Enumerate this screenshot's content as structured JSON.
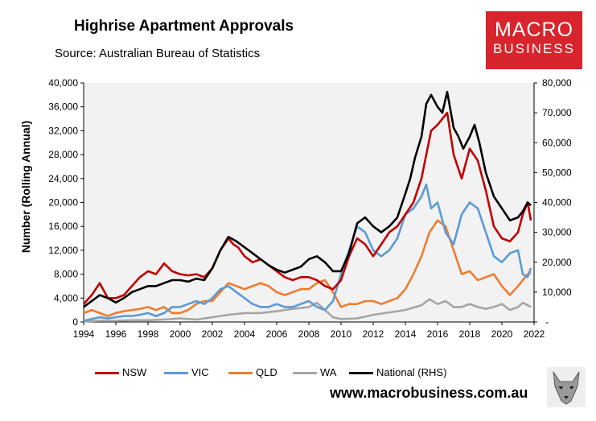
{
  "header": {
    "title": "Highrise Apartment Approvals",
    "source": "Source: Australian Bureau of Statistics"
  },
  "logo": {
    "line1": "MACRO",
    "line2": "BUSINESS"
  },
  "footer": {
    "url": "www.macrobusiness.com.au"
  },
  "colors": {
    "NSW": "#c00000",
    "VIC": "#5b9bd5",
    "QLD": "#ed7d31",
    "WA": "#a5a5a5",
    "National": "#000000",
    "plot_bg": "#f2f2f2"
  },
  "chart_data": {
    "type": "line",
    "title": "Highrise Apartment Approvals",
    "ylabel": "Number (Rolling Annual)",
    "ylabel_right": "",
    "ylim": [
      0,
      40000
    ],
    "ylim_right": [
      0,
      80000
    ],
    "xlim": [
      1994,
      2022
    ],
    "x_ticks": [
      "1994",
      "1996",
      "1998",
      "2000",
      "2002",
      "2004",
      "2006",
      "2008",
      "2010",
      "2012",
      "2014",
      "2016",
      "2018",
      "2020",
      "2022"
    ],
    "y_ticks": [
      "0",
      "4,000",
      "8,000",
      "12,000",
      "16,000",
      "20,000",
      "24,000",
      "28,000",
      "32,000",
      "36,000",
      "40,000"
    ],
    "y_ticks_right": [
      "-",
      "10,000",
      "20,000",
      "30,000",
      "40,000",
      "50,000",
      "60,000",
      "70,000",
      "80,000"
    ],
    "legend": [
      "NSW",
      "VIC",
      "QLD",
      "WA",
      "National (RHS)"
    ],
    "series": [
      {
        "name": "NSW",
        "axis": "left",
        "x": [
          1994,
          1994.5,
          1995,
          1995.5,
          1996,
          1996.5,
          1997,
          1997.5,
          1998,
          1998.5,
          1999,
          1999.5,
          2000,
          2000.5,
          2001,
          2001.5,
          2002,
          2002.5,
          2003,
          2003.3,
          2003.6,
          2004,
          2004.5,
          2005,
          2005.5,
          2006,
          2006.5,
          2007,
          2007.5,
          2008,
          2008.5,
          2009,
          2009.5,
          2010,
          2010.5,
          2011,
          2011.5,
          2012,
          2012.5,
          2013,
          2013.5,
          2014,
          2014.5,
          2015,
          2015.3,
          2015.6,
          2016,
          2016.3,
          2016.6,
          2017,
          2017.5,
          2018,
          2018.5,
          2019,
          2019.5,
          2020,
          2020.5,
          2021,
          2021.3,
          2021.6,
          2021.8
        ],
        "values": [
          3000,
          4500,
          6500,
          4000,
          4000,
          4500,
          6000,
          7500,
          8500,
          8000,
          9800,
          8500,
          8000,
          7800,
          8000,
          7500,
          9000,
          12000,
          14000,
          13000,
          12500,
          11000,
          10000,
          10500,
          9500,
          8500,
          7500,
          7000,
          7500,
          7500,
          7000,
          6000,
          5500,
          7000,
          11000,
          14000,
          13000,
          11000,
          13000,
          15000,
          16000,
          18000,
          20000,
          24000,
          28000,
          32000,
          33000,
          34000,
          35000,
          28000,
          24000,
          29000,
          27000,
          22000,
          16000,
          14000,
          13500,
          15000,
          18000,
          20000,
          17000
        ]
      },
      {
        "name": "VIC",
        "axis": "left",
        "x": [
          1994,
          1994.5,
          1995,
          1995.5,
          1996,
          1996.5,
          1997,
          1997.5,
          1998,
          1998.5,
          1999,
          1999.5,
          2000,
          2000.5,
          2001,
          2001.5,
          2002,
          2002.5,
          2003,
          2003.5,
          2004,
          2004.5,
          2005,
          2005.5,
          2006,
          2006.5,
          2007,
          2007.5,
          2008,
          2008.5,
          2009,
          2009.5,
          2010,
          2010.5,
          2011,
          2011.5,
          2012,
          2012.5,
          2013,
          2013.5,
          2014,
          2014.5,
          2015,
          2015.3,
          2015.6,
          2016,
          2016.5,
          2017,
          2017.5,
          2018,
          2018.5,
          2019,
          2019.5,
          2020,
          2020.5,
          2021,
          2021.3,
          2021.6,
          2021.8
        ],
        "values": [
          200,
          500,
          800,
          600,
          800,
          1000,
          1000,
          1200,
          1500,
          1000,
          1500,
          2500,
          2500,
          3000,
          3500,
          3000,
          4000,
          5500,
          6000,
          5000,
          4000,
          3000,
          2500,
          2500,
          3000,
          2500,
          2500,
          3000,
          3500,
          2500,
          2000,
          3500,
          8000,
          12000,
          16000,
          15000,
          12000,
          11000,
          12000,
          14000,
          18000,
          19000,
          21000,
          23000,
          19000,
          20000,
          15000,
          13000,
          18000,
          20000,
          19000,
          15000,
          11000,
          10000,
          11500,
          12000,
          8000,
          7500,
          9000
        ]
      },
      {
        "name": "QLD",
        "axis": "left",
        "x": [
          1994,
          1994.5,
          1995,
          1995.5,
          1996,
          1996.5,
          1997,
          1997.5,
          1998,
          1998.5,
          1999,
          1999.5,
          2000,
          2000.5,
          2001,
          2001.5,
          2002,
          2002.5,
          2003,
          2003.5,
          2004,
          2004.5,
          2005,
          2005.5,
          2006,
          2006.5,
          2007,
          2007.5,
          2008,
          2008.5,
          2009,
          2009.5,
          2010,
          2010.5,
          2011,
          2011.5,
          2012,
          2012.5,
          2013,
          2013.5,
          2014,
          2014.5,
          2015,
          2015.5,
          2016,
          2016.5,
          2017,
          2017.5,
          2018,
          2018.5,
          2019,
          2019.5,
          2020,
          2020.5,
          2021,
          2021.3,
          2021.6,
          2021.8
        ],
        "values": [
          1500,
          2000,
          1500,
          1000,
          1500,
          1800,
          2000,
          2200,
          2500,
          2000,
          2500,
          1500,
          1500,
          2000,
          3000,
          3500,
          3500,
          5000,
          6500,
          6000,
          5500,
          6000,
          6500,
          6000,
          5000,
          4500,
          5000,
          5500,
          5500,
          6500,
          7000,
          5000,
          2500,
          3000,
          3000,
          3500,
          3500,
          3000,
          3500,
          4000,
          5500,
          8000,
          11000,
          15000,
          17000,
          16000,
          12000,
          8000,
          8500,
          7000,
          7500,
          8000,
          6000,
          4500,
          6000,
          7000,
          8000,
          8200
        ]
      },
      {
        "name": "WA",
        "axis": "left",
        "x": [
          1994,
          1995,
          1996,
          1997,
          1998,
          1999,
          2000,
          2001,
          2002,
          2003,
          2004,
          2005,
          2006,
          2007,
          2008,
          2008.5,
          2009,
          2009.5,
          2010,
          2011,
          2012,
          2013,
          2014,
          2015,
          2015.5,
          2016,
          2016.5,
          2017,
          2017.5,
          2018,
          2018.5,
          2019,
          2019.5,
          2020,
          2020.5,
          2021,
          2021.3,
          2021.6,
          2021.8
        ],
        "values": [
          100,
          200,
          200,
          300,
          300,
          400,
          600,
          400,
          800,
          1200,
          1500,
          1500,
          1800,
          2200,
          2500,
          3200,
          2000,
          800,
          500,
          600,
          1200,
          1600,
          2000,
          2800,
          3800,
          3000,
          3500,
          2500,
          2500,
          3000,
          2500,
          2200,
          2500,
          3000,
          2000,
          2500,
          3200,
          2800,
          2500
        ]
      },
      {
        "name": "National (RHS)",
        "axis": "right",
        "x": [
          1994,
          1994.5,
          1995,
          1995.5,
          1996,
          1996.5,
          1997,
          1997.5,
          1998,
          1998.5,
          1999,
          1999.5,
          2000,
          2000.5,
          2001,
          2001.5,
          2002,
          2002.5,
          2003,
          2003.5,
          2004,
          2004.5,
          2005,
          2005.5,
          2006,
          2006.5,
          2007,
          2007.5,
          2008,
          2008.5,
          2009,
          2009.5,
          2010,
          2010.5,
          2011,
          2011.5,
          2012,
          2012.5,
          2013,
          2013.5,
          2014,
          2014.3,
          2014.6,
          2015,
          2015.3,
          2015.6,
          2016,
          2016.3,
          2016.6,
          2017,
          2017.3,
          2017.6,
          2018,
          2018.3,
          2018.6,
          2019,
          2019.5,
          2020,
          2020.5,
          2021,
          2021.3,
          2021.6,
          2021.8
        ],
        "values": [
          5000,
          7000,
          9000,
          8000,
          6500,
          8000,
          10000,
          11000,
          12000,
          12000,
          13000,
          14000,
          14000,
          13500,
          14500,
          14000,
          18000,
          24000,
          28500,
          27000,
          25000,
          23000,
          21000,
          19000,
          17500,
          16500,
          17500,
          18500,
          21000,
          22000,
          20000,
          17000,
          17000,
          23000,
          33000,
          35000,
          32000,
          30000,
          32000,
          35000,
          43000,
          48000,
          55000,
          62000,
          73000,
          76000,
          72000,
          70000,
          77000,
          65000,
          62000,
          58000,
          62000,
          66000,
          60000,
          50000,
          42000,
          38000,
          34000,
          35000,
          37000,
          40000,
          39000
        ]
      }
    ]
  }
}
